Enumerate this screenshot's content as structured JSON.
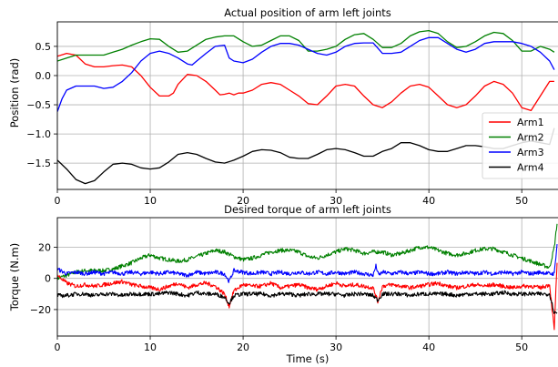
{
  "chart_data": [
    {
      "type": "line",
      "title": "Actual position of arm left joints",
      "xlabel": "",
      "ylabel": "Position (rad)",
      "xlim": [
        0,
        54
      ],
      "ylim": [
        -1.95,
        0.92
      ],
      "xticks": [
        0,
        10,
        20,
        30,
        40,
        50
      ],
      "yticks": [
        -1.5,
        -1.0,
        -0.5,
        0.0,
        0.5
      ],
      "ytick_labels": [
        "−1.5",
        "−1.0",
        "−0.5",
        "0.0",
        "0.5"
      ],
      "grid": true,
      "legend_position": "right",
      "series": [
        {
          "name": "Arm1",
          "color": "#ff0000",
          "x": [
            0,
            1,
            2,
            3,
            4,
            5,
            6,
            7,
            8,
            9,
            10,
            11,
            12,
            12.5,
            13,
            14,
            15,
            16,
            17,
            17.5,
            18,
            18.5,
            19,
            19.5,
            20,
            21,
            22,
            23,
            24,
            25,
            26,
            27,
            28,
            29,
            30,
            31,
            32,
            33,
            34,
            35,
            36,
            37,
            38,
            39,
            40,
            41,
            42,
            43,
            44,
            45,
            46,
            47,
            48,
            49,
            50,
            51,
            52,
            53,
            53.5
          ],
          "y": [
            0.33,
            0.38,
            0.35,
            0.2,
            0.15,
            0.15,
            0.17,
            0.18,
            0.15,
            0.0,
            -0.2,
            -0.35,
            -0.35,
            -0.3,
            -0.15,
            0.02,
            0.0,
            -0.1,
            -0.25,
            -0.33,
            -0.32,
            -0.3,
            -0.33,
            -0.3,
            -0.3,
            -0.25,
            -0.15,
            -0.12,
            -0.15,
            -0.25,
            -0.35,
            -0.48,
            -0.5,
            -0.35,
            -0.18,
            -0.15,
            -0.18,
            -0.35,
            -0.5,
            -0.55,
            -0.45,
            -0.3,
            -0.18,
            -0.15,
            -0.2,
            -0.35,
            -0.5,
            -0.55,
            -0.5,
            -0.35,
            -0.18,
            -0.1,
            -0.15,
            -0.3,
            -0.55,
            -0.6,
            -0.35,
            -0.1,
            -0.1
          ]
        },
        {
          "name": "Arm2",
          "color": "#008000",
          "x": [
            0,
            1,
            2,
            3,
            4,
            5,
            6,
            7,
            8,
            9,
            10,
            11,
            12,
            13,
            14,
            15,
            16,
            17,
            18,
            19,
            20,
            21,
            22,
            23,
            24,
            25,
            26,
            27,
            28,
            29,
            30,
            31,
            32,
            33,
            34,
            35,
            36,
            37,
            38,
            39,
            40,
            41,
            42,
            43,
            44,
            45,
            46,
            47,
            48,
            49,
            50,
            51,
            52,
            53,
            53.5
          ],
          "y": [
            0.25,
            0.3,
            0.35,
            0.35,
            0.35,
            0.35,
            0.4,
            0.45,
            0.52,
            0.58,
            0.63,
            0.62,
            0.5,
            0.4,
            0.42,
            0.52,
            0.62,
            0.66,
            0.68,
            0.68,
            0.58,
            0.5,
            0.52,
            0.6,
            0.68,
            0.68,
            0.6,
            0.42,
            0.42,
            0.45,
            0.5,
            0.62,
            0.7,
            0.72,
            0.62,
            0.48,
            0.48,
            0.55,
            0.68,
            0.75,
            0.77,
            0.72,
            0.58,
            0.48,
            0.5,
            0.58,
            0.68,
            0.74,
            0.72,
            0.6,
            0.42,
            0.42,
            0.5,
            0.45,
            0.4
          ]
        },
        {
          "name": "Arm3",
          "color": "#0000ff",
          "x": [
            0,
            0.5,
            1,
            2,
            3,
            4,
            5,
            6,
            7,
            8,
            9,
            10,
            11,
            12,
            13,
            14,
            14.5,
            15,
            16,
            17,
            18,
            18.5,
            19,
            20,
            21,
            22,
            23,
            24,
            25,
            26,
            27,
            28,
            29,
            30,
            31,
            32,
            33,
            34,
            35,
            36,
            37,
            38,
            39,
            40,
            41,
            42,
            43,
            44,
            45,
            46,
            47,
            48,
            49,
            50,
            51,
            52,
            53,
            53.5
          ],
          "y": [
            -0.62,
            -0.4,
            -0.25,
            -0.18,
            -0.18,
            -0.18,
            -0.22,
            -0.2,
            -0.1,
            0.05,
            0.25,
            0.38,
            0.42,
            0.38,
            0.3,
            0.2,
            0.18,
            0.25,
            0.38,
            0.5,
            0.52,
            0.3,
            0.25,
            0.22,
            0.28,
            0.4,
            0.5,
            0.55,
            0.55,
            0.52,
            0.45,
            0.38,
            0.35,
            0.4,
            0.5,
            0.55,
            0.56,
            0.56,
            0.38,
            0.38,
            0.4,
            0.5,
            0.6,
            0.65,
            0.65,
            0.55,
            0.45,
            0.4,
            0.45,
            0.55,
            0.58,
            0.58,
            0.58,
            0.55,
            0.5,
            0.4,
            0.25,
            0.1
          ]
        },
        {
          "name": "Arm4",
          "color": "#000000",
          "x": [
            0,
            1,
            2,
            3,
            4,
            5,
            6,
            7,
            8,
            9,
            10,
            11,
            12,
            13,
            14,
            15,
            16,
            17,
            18,
            19,
            20,
            21,
            22,
            23,
            24,
            25,
            26,
            27,
            28,
            29,
            30,
            31,
            32,
            33,
            34,
            35,
            36,
            37,
            38,
            39,
            40,
            41,
            42,
            43,
            44,
            45,
            46,
            47,
            48,
            49,
            50,
            51,
            52,
            53,
            53.5
          ],
          "y": [
            -1.45,
            -1.6,
            -1.78,
            -1.85,
            -1.8,
            -1.65,
            -1.52,
            -1.5,
            -1.52,
            -1.58,
            -1.6,
            -1.58,
            -1.48,
            -1.35,
            -1.32,
            -1.35,
            -1.42,
            -1.48,
            -1.5,
            -1.45,
            -1.38,
            -1.3,
            -1.27,
            -1.28,
            -1.32,
            -1.4,
            -1.42,
            -1.42,
            -1.35,
            -1.27,
            -1.25,
            -1.27,
            -1.32,
            -1.38,
            -1.38,
            -1.3,
            -1.25,
            -1.15,
            -1.15,
            -1.2,
            -1.27,
            -1.3,
            -1.3,
            -1.25,
            -1.2,
            -1.2,
            -1.22,
            -1.25,
            -1.25,
            -1.2,
            -1.15,
            -1.12,
            -1.15,
            -1.18,
            -0.9
          ]
        }
      ]
    },
    {
      "type": "line",
      "title": "Desired torque of arm left joints",
      "xlabel": "Time (s)",
      "ylabel": "Torque (N.m)",
      "xlim": [
        0,
        54
      ],
      "ylim": [
        -37,
        39
      ],
      "xticks": [
        0,
        10,
        20,
        30,
        40,
        50
      ],
      "yticks": [
        -20,
        0,
        20
      ],
      "ytick_labels": [
        "−20",
        "0",
        "20"
      ],
      "grid": true,
      "series": [
        {
          "name": "Arm2",
          "color": "#008000",
          "x": [
            0,
            1,
            2,
            3,
            4,
            5,
            6,
            7,
            8,
            9,
            10,
            11,
            12,
            13,
            14,
            15,
            16,
            17,
            18,
            19,
            20,
            21,
            22,
            23,
            24,
            25,
            26,
            27,
            28,
            29,
            30,
            31,
            32,
            33,
            34,
            35,
            36,
            37,
            38,
            39,
            40,
            41,
            42,
            43,
            44,
            45,
            46,
            47,
            48,
            49,
            50,
            51,
            52,
            53,
            53.5,
            53.8
          ],
          "y": [
            0,
            2,
            4,
            5,
            5,
            5,
            6,
            8,
            10,
            13,
            15,
            13,
            12,
            11,
            12,
            14,
            16,
            18,
            17,
            14,
            12,
            13,
            15,
            17,
            18,
            18,
            17,
            14,
            13,
            15,
            17,
            19,
            18,
            16,
            17,
            17,
            15,
            16,
            18,
            20,
            20,
            18,
            16,
            15,
            16,
            18,
            19,
            19,
            17,
            15,
            13,
            11,
            9,
            7,
            20,
            35
          ]
        },
        {
          "name": "Arm3",
          "color": "#0000ff",
          "x": [
            0,
            1,
            2,
            3,
            4,
            5,
            6,
            7,
            8,
            9,
            10,
            11,
            12,
            13,
            14,
            15,
            16,
            17,
            18,
            18.5,
            19,
            20,
            21,
            22,
            23,
            24,
            25,
            26,
            27,
            28,
            29,
            30,
            31,
            32,
            33,
            34,
            34.3,
            34.6,
            35,
            36,
            37,
            38,
            39,
            40,
            41,
            42,
            43,
            44,
            45,
            46,
            47,
            48,
            49,
            50,
            51,
            52,
            53,
            53.5,
            53.8
          ],
          "y": [
            6,
            3,
            4,
            3,
            4,
            3,
            4,
            3,
            4,
            3,
            4,
            3,
            4,
            3,
            2,
            4,
            3,
            4,
            3,
            -2,
            5,
            4,
            3,
            4,
            3,
            4,
            3,
            4,
            3,
            4,
            3,
            4,
            3,
            4,
            3,
            2,
            8,
            2,
            4,
            3,
            4,
            3,
            4,
            3,
            3,
            4,
            3,
            4,
            3,
            4,
            3,
            4,
            3,
            4,
            3,
            4,
            3,
            3,
            22
          ]
        },
        {
          "name": "Arm1",
          "color": "#ff0000",
          "x": [
            0,
            1,
            2,
            3,
            4,
            5,
            6,
            7,
            8,
            9,
            10,
            11,
            12,
            13,
            14,
            15,
            16,
            17,
            18,
            18.5,
            19,
            20,
            21,
            22,
            23,
            24,
            25,
            26,
            27,
            28,
            29,
            30,
            31,
            32,
            33,
            34,
            34.5,
            35,
            36,
            37,
            38,
            39,
            40,
            41,
            42,
            43,
            44,
            45,
            46,
            47,
            48,
            49,
            50,
            51,
            52,
            53,
            53.5,
            53.8
          ],
          "y": [
            2,
            -3,
            -5,
            -4,
            -5,
            -4,
            -3,
            -2,
            -4,
            -5,
            -6,
            -7,
            -5,
            -3,
            -6,
            -4,
            -3,
            -5,
            -10,
            -18,
            -8,
            -4,
            -5,
            -5,
            -3,
            -6,
            -5,
            -4,
            -6,
            -7,
            -5,
            -3,
            -5,
            -4,
            -5,
            -6,
            -15,
            -5,
            -4,
            -5,
            -6,
            -5,
            -4,
            -3,
            -5,
            -6,
            -5,
            -4,
            -5,
            -4,
            -5,
            -6,
            -5,
            -5,
            -6,
            -4,
            -33,
            10
          ]
        },
        {
          "name": "Arm4",
          "color": "#000000",
          "x": [
            0,
            1,
            2,
            3,
            4,
            5,
            6,
            7,
            8,
            9,
            10,
            11,
            12,
            13,
            14,
            15,
            16,
            17,
            18,
            18.5,
            19,
            20,
            21,
            22,
            23,
            24,
            25,
            26,
            27,
            28,
            29,
            30,
            31,
            32,
            33,
            34,
            34.5,
            35,
            36,
            37,
            38,
            39,
            40,
            41,
            42,
            43,
            44,
            45,
            46,
            47,
            48,
            49,
            50,
            51,
            52,
            53,
            53.5,
            53.8
          ],
          "y": [
            -11,
            -11,
            -10,
            -10,
            -11,
            -10,
            -10,
            -11,
            -10,
            -10,
            -10,
            -10,
            -9,
            -10,
            -11,
            -9,
            -10,
            -10,
            -12,
            -16,
            -11,
            -10,
            -10,
            -10,
            -11,
            -10,
            -10,
            -11,
            -10,
            -10,
            -10,
            -10,
            -11,
            -10,
            -10,
            -11,
            -14,
            -10,
            -10,
            -10,
            -11,
            -10,
            -10,
            -10,
            -10,
            -11,
            -10,
            -10,
            -10,
            -10,
            -9,
            -10,
            -10,
            -10,
            -10,
            -10,
            -22,
            -22
          ]
        }
      ]
    }
  ],
  "legend": [
    "Arm1",
    "Arm2",
    "Arm3",
    "Arm4"
  ]
}
